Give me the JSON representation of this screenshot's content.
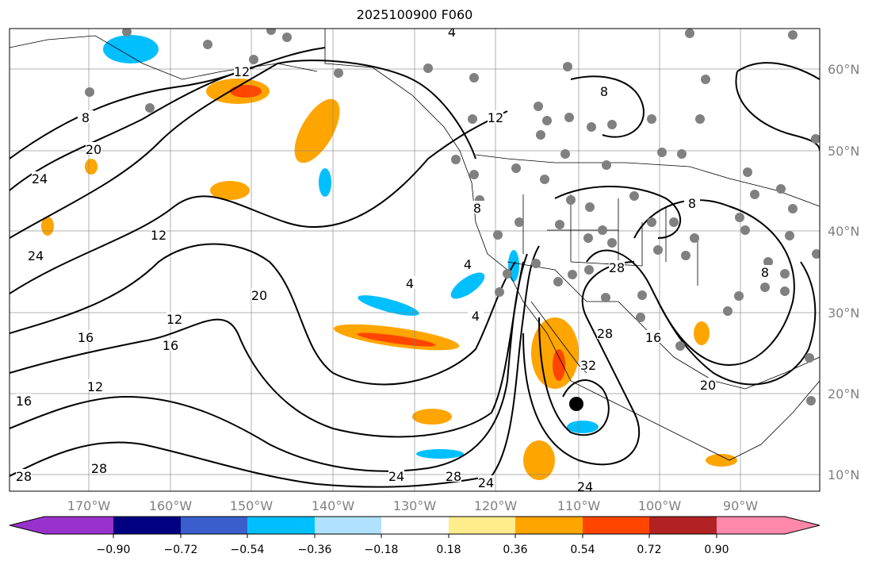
{
  "title": "2025100900 F060",
  "map": {
    "longitude_labels": [
      "170°W",
      "160°W",
      "150°W",
      "140°W",
      "130°W",
      "120°W",
      "110°W",
      "100°W",
      "90°W"
    ],
    "latitude_labels": [
      "60°N",
      "50°N",
      "40°N",
      "30°N",
      "20°N",
      "10°N"
    ],
    "contour_labels": [
      "4",
      "8",
      "20",
      "24",
      "12",
      "24",
      "20",
      "12",
      "16",
      "16",
      "12",
      "16",
      "28",
      "28",
      "24",
      "28",
      "24",
      "24",
      "4",
      "4",
      "4",
      "28",
      "28",
      "32",
      "16",
      "20",
      "12",
      "8",
      "8",
      "8",
      "8",
      "12"
    ],
    "storm_marker": "tropical-cyclone-center",
    "colors": {
      "gridline": "#808080",
      "station_dot": "#808080",
      "contour": "#000000"
    }
  },
  "colorbar": {
    "ticks": [
      "−0.90",
      "−0.72",
      "−0.54",
      "−0.36",
      "−0.18",
      "0.18",
      "0.36",
      "0.54",
      "0.72",
      "0.90"
    ],
    "colors": [
      "#9932cc",
      "#000080",
      "#3a5fcd",
      "#00bfff",
      "#b0e2ff",
      "#ffffff",
      "#ffec8b",
      "#ffa500",
      "#ff4500",
      "#b22222",
      "#ff88aa"
    ],
    "extend": "both"
  }
}
